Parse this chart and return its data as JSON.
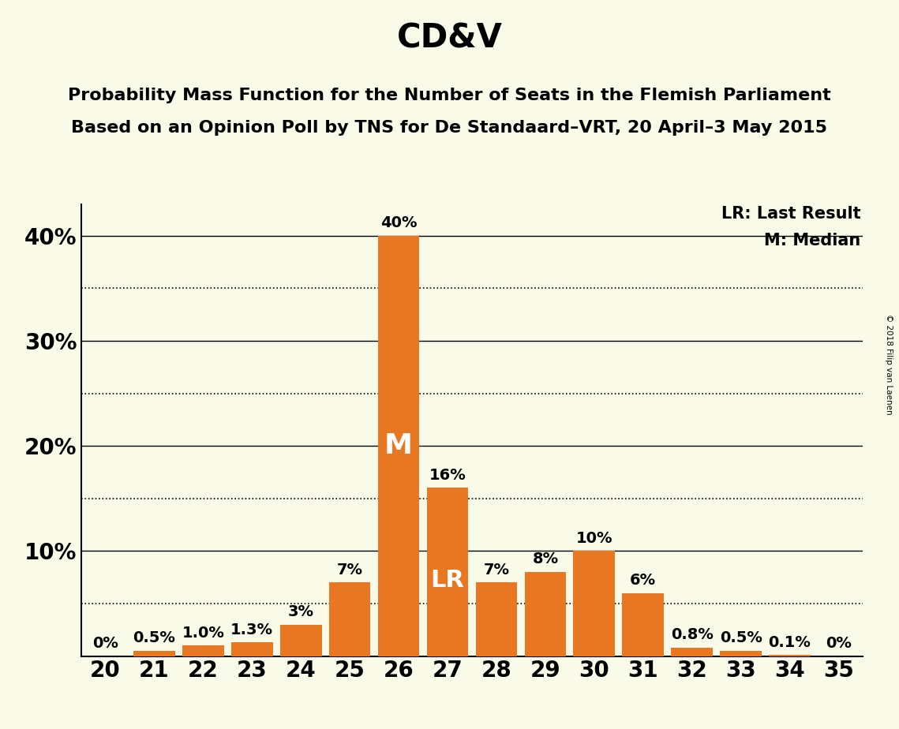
{
  "title": "CD&V",
  "subtitle1": "Probability Mass Function for the Number of Seats in the Flemish Parliament",
  "subtitle2": "Based on an Opinion Poll by TNS for De Standaard–VRT, 20 April–3 May 2015",
  "copyright": "© 2018 Filip van Laenen",
  "legend_lr": "LR: Last Result",
  "legend_m": "M: Median",
  "background_color": "#FAFAE8",
  "bar_color": "#E87722",
  "seats": [
    20,
    21,
    22,
    23,
    24,
    25,
    26,
    27,
    28,
    29,
    30,
    31,
    32,
    33,
    34,
    35
  ],
  "values": [
    0.0,
    0.5,
    1.0,
    1.3,
    3.0,
    7.0,
    40.0,
    16.0,
    7.0,
    8.0,
    10.0,
    6.0,
    0.8,
    0.5,
    0.1,
    0.0
  ],
  "labels": [
    "0%",
    "0.5%",
    "1.0%",
    "1.3%",
    "3%",
    "7%",
    "40%",
    "16%",
    "7%",
    "8%",
    "10%",
    "6%",
    "0.8%",
    "0.5%",
    "0.1%",
    "0%"
  ],
  "median_seat": 26,
  "lr_seat": 27,
  "ylim": [
    0,
    43
  ],
  "yticks": [
    0,
    10,
    20,
    30,
    40
  ],
  "ytick_labels": [
    "",
    "10%",
    "20%",
    "30%",
    "40%"
  ],
  "dotted_ticks": [
    5,
    15,
    25,
    35
  ],
  "title_fontsize": 30,
  "subtitle_fontsize": 16,
  "label_fontsize": 14,
  "axis_fontsize": 20,
  "annotation_fontsize": 26,
  "lr_fontsize": 22
}
